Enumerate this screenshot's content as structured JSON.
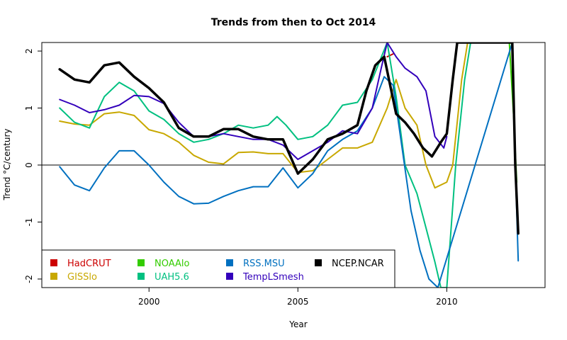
{
  "chart_data": {
    "type": "line",
    "title": "Trends from then to Oct 2014",
    "xlabel": "Year",
    "ylabel": "Trend °C/century",
    "xlim": [
      1996.4,
      2013.3
    ],
    "ylim": [
      -2.15,
      2.15
    ],
    "xticks": [
      2000,
      2005,
      2010
    ],
    "yticks": [
      -2,
      -1,
      0,
      1,
      2
    ],
    "grid": false,
    "zero_line": true,
    "legend_position": "bottom-left",
    "series": [
      {
        "name": "HadCRUT",
        "color": "#cc0000",
        "width": 2,
        "x": [
          2008.0,
          2008.2
        ],
        "y": [
          1.9,
          1.95
        ]
      },
      {
        "name": "GISSlo",
        "color": "#c8a800",
        "width": 2,
        "x": [
          1997.0,
          1997.5,
          1998.0,
          1998.5,
          1999.0,
          1999.5,
          2000.0,
          2000.5,
          2001.0,
          2001.5,
          2002.0,
          2002.5,
          2003.0,
          2003.5,
          2004.0,
          2004.5,
          2005.0,
          2005.5,
          2006.0,
          2006.5,
          2007.0,
          2007.5,
          2008.0,
          2008.3,
          2008.6,
          2009.0,
          2009.3,
          2009.6,
          2010.0,
          2010.2,
          2010.5,
          2010.7
        ],
        "y": [
          0.77,
          0.72,
          0.7,
          0.9,
          0.93,
          0.87,
          0.62,
          0.55,
          0.4,
          0.17,
          0.05,
          0.02,
          0.22,
          0.23,
          0.2,
          0.2,
          -0.13,
          -0.1,
          0.1,
          0.3,
          0.3,
          0.4,
          1.0,
          1.5,
          1.0,
          0.7,
          0.0,
          -0.4,
          -0.3,
          0.0,
          1.5,
          2.15
        ]
      },
      {
        "name": "NOAAlo",
        "color": "#33cc00",
        "width": 2,
        "x": [
          2012.1,
          2012.25,
          2012.35
        ],
        "y": [
          2.15,
          0.8,
          -0.3
        ]
      },
      {
        "name": "UAH5.6",
        "color": "#00c080",
        "width": 2,
        "x": [
          1997.0,
          1997.5,
          1998.0,
          1998.5,
          1999.0,
          1999.5,
          2000.0,
          2000.5,
          2001.0,
          2001.5,
          2002.0,
          2002.5,
          2003.0,
          2003.5,
          2004.0,
          2004.3,
          2004.6,
          2005.0,
          2005.5,
          2006.0,
          2006.5,
          2007.0,
          2007.5,
          2008.0,
          2008.3,
          2008.6,
          2009.0,
          2009.3,
          2009.6,
          2009.8,
          2010.0,
          2010.3,
          2010.6,
          2010.8
        ],
        "y": [
          1.0,
          0.75,
          0.65,
          1.2,
          1.45,
          1.3,
          0.95,
          0.8,
          0.55,
          0.4,
          0.45,
          0.55,
          0.7,
          0.65,
          0.7,
          0.85,
          0.7,
          0.45,
          0.5,
          0.7,
          1.05,
          1.1,
          1.5,
          2.15,
          1.2,
          0.0,
          -0.5,
          -1.1,
          -1.7,
          -2.15,
          -2.15,
          0.0,
          1.5,
          2.15
        ]
      },
      {
        "name": "RSS.MSU",
        "color": "#0070c0",
        "width": 2,
        "x": [
          1997.0,
          1997.5,
          1998.0,
          1998.5,
          1999.0,
          1999.5,
          2000.0,
          2000.5,
          2001.0,
          2001.5,
          2002.0,
          2002.5,
          2003.0,
          2003.5,
          2004.0,
          2004.5,
          2005.0,
          2005.5,
          2006.0,
          2006.5,
          2007.0,
          2007.5,
          2007.9,
          2008.2,
          2008.5,
          2008.8,
          2009.1,
          2009.4,
          2009.7,
          2012.2,
          2012.3,
          2012.4
        ],
        "y": [
          -0.03,
          -0.35,
          -0.45,
          -0.05,
          0.25,
          0.25,
          0.0,
          -0.3,
          -0.55,
          -0.68,
          -0.67,
          -0.55,
          -0.45,
          -0.38,
          -0.38,
          -0.05,
          -0.4,
          -0.15,
          0.25,
          0.45,
          0.6,
          1.0,
          1.55,
          1.4,
          0.3,
          -0.8,
          -1.5,
          -2.0,
          -2.15,
          2.15,
          0.0,
          -1.68
        ]
      },
      {
        "name": "TempLSmesh",
        "color": "#3300bb",
        "width": 2,
        "x": [
          1997.0,
          1997.5,
          1998.0,
          1998.5,
          1999.0,
          1999.5,
          2000.0,
          2000.5,
          2001.0,
          2001.5,
          2002.0,
          2002.5,
          2003.0,
          2003.5,
          2004.0,
          2004.5,
          2005.0,
          2005.5,
          2006.0,
          2006.5,
          2007.0,
          2007.5,
          2007.8,
          2008.0,
          2008.3,
          2008.6,
          2009.0,
          2009.3,
          2009.6,
          2009.9,
          2010.0
        ],
        "y": [
          1.15,
          1.05,
          0.92,
          0.97,
          1.05,
          1.22,
          1.2,
          1.08,
          0.75,
          0.5,
          0.5,
          0.55,
          0.5,
          0.45,
          0.45,
          0.35,
          0.1,
          0.25,
          0.4,
          0.6,
          0.55,
          1.0,
          1.7,
          2.15,
          1.9,
          1.7,
          1.55,
          1.3,
          0.5,
          0.3,
          0.5
        ]
      },
      {
        "name": "NCEP.NCAR",
        "color": "#000000",
        "width": 3.5,
        "x": [
          1997.0,
          1997.5,
          1998.0,
          1998.5,
          1999.0,
          1999.5,
          2000.0,
          2000.5,
          2001.0,
          2001.5,
          2002.0,
          2002.5,
          2003.0,
          2003.5,
          2004.0,
          2004.5,
          2005.0,
          2005.5,
          2006.0,
          2006.5,
          2007.0,
          2007.3,
          2007.6,
          2007.9,
          2008.1,
          2008.3,
          2008.6,
          2008.9,
          2009.2,
          2009.5,
          2009.8,
          2010.0,
          2010.2,
          2010.35,
          2012.2,
          2012.3,
          2012.4
        ],
        "y": [
          1.68,
          1.5,
          1.45,
          1.75,
          1.8,
          1.55,
          1.35,
          1.1,
          0.65,
          0.5,
          0.5,
          0.63,
          0.63,
          0.5,
          0.45,
          0.45,
          -0.15,
          0.1,
          0.45,
          0.55,
          0.7,
          1.3,
          1.75,
          1.9,
          1.4,
          0.9,
          0.75,
          0.55,
          0.3,
          0.15,
          0.4,
          0.55,
          1.5,
          2.15,
          2.15,
          0.0,
          -1.2
        ]
      }
    ]
  }
}
